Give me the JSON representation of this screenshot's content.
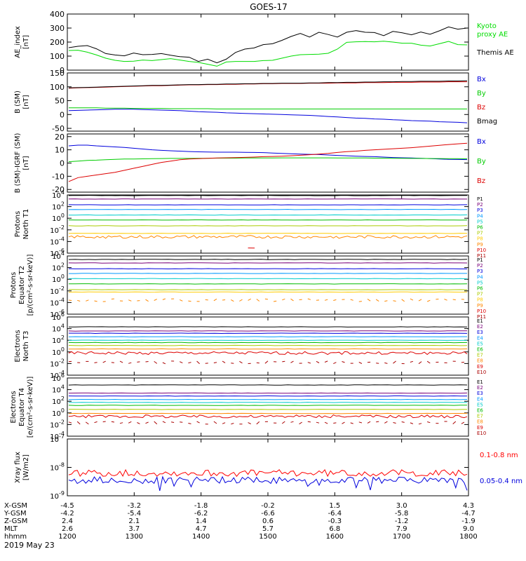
{
  "title": "GOES-17",
  "date_label": "2019 May 23",
  "colors": {
    "P1": "#000000",
    "P2": "#7a007a",
    "P3": "#0000dd",
    "P4": "#0099ff",
    "P5": "#00cccc",
    "P6": "#00bb00",
    "P7": "#aacc00",
    "P8": "#ffcc00",
    "P9": "#ff8800",
    "P10": "#dd0000",
    "P11": "#aa0000",
    "E1": "#000000",
    "E2": "#7a007a",
    "E3": "#0000dd",
    "E4": "#0099ff",
    "E5": "#00cccc",
    "E6": "#00bb00",
    "E7": "#aacc00",
    "E8": "#ff8800",
    "E9": "#dd0000",
    "E10": "#aa0000",
    "Kyoto proxy AE": "#00dd00",
    "Themis AE": "#000000",
    "Bx": "#0000dd",
    "By": "#00cc00",
    "Bz": "#dd0000",
    "Bmag": "#000000",
    "0.1-0.8 nm": "#ff0000",
    "0.05-0.4 nm": "#0000dd"
  },
  "ephemeris": {
    "rows": [
      {
        "label": "X-GSM",
        "values": [
          "-4.5",
          "-3.2",
          "-1.8",
          "-0.2",
          "1.5",
          "3.0",
          "4.3"
        ]
      },
      {
        "label": "Y-GSM",
        "values": [
          "-4.2",
          "-5.4",
          "-6.2",
          "-6.6",
          "-6.4",
          "-5.8",
          "-4.7"
        ]
      },
      {
        "label": "Z-GSM",
        "values": [
          "2.4",
          "2.1",
          "1.4",
          "0.6",
          "-0.3",
          "-1.2",
          "-1.9"
        ]
      },
      {
        "label": "MLT",
        "values": [
          "2.6",
          "3.7",
          "4.7",
          "5.7",
          "6.8",
          "7.9",
          "9.0"
        ]
      },
      {
        "label": "hhmm",
        "values": [
          "1200",
          "1300",
          "1400",
          "1500",
          "1600",
          "1700",
          "1800"
        ]
      }
    ]
  },
  "chart_data": [
    {
      "type": "line",
      "ylabel": "AE_index\n[nT]",
      "ylim": [
        0,
        400
      ],
      "yticks": [
        "0",
        "100",
        "200",
        "300",
        "400"
      ],
      "series": [
        {
          "name": "Kyoto\nproxy AE",
          "values": [
            140,
            142,
            128,
            108,
            85,
            70,
            62,
            64,
            72,
            68,
            75,
            82,
            72,
            62,
            55,
            42,
            28,
            58,
            62,
            62,
            62,
            68,
            70,
            85,
            100,
            110,
            112,
            114,
            120,
            150,
            198,
            202,
            204,
            202,
            206,
            200,
            192,
            192,
            178,
            172,
            188,
            205,
            182,
            180
          ]
        },
        {
          "name": "Themis AE",
          "values": [
            160,
            170,
            175,
            152,
            118,
            108,
            102,
            122,
            110,
            112,
            118,
            106,
            96,
            92,
            62,
            78,
            52,
            78,
            126,
            150,
            158,
            182,
            188,
            212,
            240,
            262,
            236,
            270,
            254,
            236,
            270,
            282,
            270,
            268,
            246,
            276,
            266,
            252,
            272,
            256,
            280,
            308,
            292,
            300
          ]
        }
      ]
    },
    {
      "type": "line",
      "ylabel": "B (SM)\n[nT]",
      "ylim": [
        -60,
        150
      ],
      "yticks": [
        "-50",
        "0",
        "50",
        "100",
        "150"
      ],
      "series": [
        {
          "name": "Bx",
          "values": [
            14,
            15,
            16,
            17,
            18,
            19,
            19,
            19,
            18,
            17,
            16,
            15,
            14,
            12,
            10,
            9,
            8,
            6,
            5,
            4,
            3,
            2,
            1,
            0,
            -1,
            -2,
            -3,
            -5,
            -7,
            -9,
            -11,
            -13,
            -14,
            -16,
            -17,
            -19,
            -20,
            -22,
            -23,
            -24,
            -26,
            -27,
            -28,
            -30
          ]
        },
        {
          "name": "By",
          "values": [
            24,
            24,
            24,
            24,
            23,
            23,
            23,
            22,
            22,
            22,
            22,
            21,
            21,
            21,
            21,
            21,
            20,
            20,
            20,
            20,
            20,
            20,
            20,
            20,
            20,
            20,
            20,
            20,
            20,
            20,
            20,
            20,
            20,
            20,
            20,
            20,
            20,
            20,
            20,
            20,
            20,
            20,
            20,
            20
          ]
        },
        {
          "name": "Bz",
          "values": [
            95,
            96,
            97,
            98,
            99,
            100,
            101,
            102,
            103,
            104,
            104,
            105,
            106,
            107,
            107,
            108,
            108,
            109,
            109,
            110,
            110,
            111,
            111,
            112,
            112,
            112,
            113,
            113,
            113,
            114,
            114,
            114,
            115,
            115,
            115,
            116,
            116,
            116,
            117,
            117,
            117,
            118,
            118,
            118
          ]
        },
        {
          "name": "Bmag",
          "values": [
            96,
            97,
            98,
            99,
            100,
            101,
            102,
            103,
            104,
            105,
            105,
            106,
            107,
            108,
            108,
            109,
            109,
            110,
            110,
            111,
            111,
            112,
            112,
            113,
            113,
            113,
            114,
            114,
            115,
            115,
            116,
            116,
            117,
            117,
            118,
            118,
            119,
            119,
            120,
            120,
            120,
            121,
            121,
            122
          ]
        }
      ]
    },
    {
      "type": "line",
      "ylabel": "B (SM)-IGRF (SM)\n[nT]",
      "ylim": [
        -22,
        22
      ],
      "yticks": [
        "-20",
        "-10",
        "0",
        "10",
        "20"
      ],
      "series": [
        {
          "name": "Bx",
          "values": [
            13,
            13.5,
            13.5,
            13,
            12.6,
            12.2,
            11.8,
            11.2,
            10.6,
            10,
            9.6,
            9.3,
            9,
            8.7,
            8.5,
            8.3,
            8.2,
            8.2,
            8.2,
            8.1,
            8,
            7.9,
            7.6,
            7.3,
            7,
            6.8,
            6.6,
            6.4,
            6.1,
            5.8,
            5.5,
            5.2,
            5,
            4.8,
            4.5,
            4.2,
            4,
            3.8,
            3.6,
            3.4,
            3.1,
            2.8,
            2.7,
            2.6
          ]
        },
        {
          "name": "By",
          "values": [
            1,
            1.5,
            2,
            2.2,
            2.5,
            2.8,
            3,
            3.1,
            3.2,
            3.3,
            3.4,
            3.5,
            3.5,
            3.5,
            3.6,
            3.6,
            3.7,
            3.7,
            3.7,
            3.8,
            3.8,
            3.8,
            3.8,
            3.9,
            3.9,
            3.9,
            3.9,
            3.9,
            3.9,
            3.8,
            3.8,
            3.8,
            3.8,
            3.7,
            3.7,
            3.6,
            3.6,
            3.5,
            3.5,
            3.4,
            3.4,
            3.3,
            3.3,
            3.2
          ]
        },
        {
          "name": "Bz",
          "values": [
            -14,
            -11,
            -10,
            -9,
            -8,
            -7,
            -5.5,
            -4,
            -2.5,
            -1,
            0.5,
            1.5,
            2.5,
            3,
            3.3,
            3.6,
            3.8,
            4,
            4.1,
            4.3,
            4.5,
            4.8,
            5,
            5.2,
            5.5,
            5.9,
            6.3,
            6.8,
            7.3,
            8,
            8.6,
            9,
            9.6,
            10,
            10.4,
            10.8,
            11.2,
            11.6,
            12.2,
            12.8,
            13.4,
            14,
            14.5,
            15
          ]
        }
      ]
    },
    {
      "type": "line",
      "ylabel": "Protons\nNorth T1",
      "yscale": "log",
      "ylim": [
        -6,
        4
      ],
      "yticks_exp": [
        -6,
        -4,
        -2,
        0,
        2,
        4
      ],
      "series": [
        {
          "name": "P1",
          "level": 3.9
        },
        {
          "name": "P2",
          "level": 3.3
        },
        {
          "name": "P3",
          "level": 2.3
        },
        {
          "name": "P4",
          "level": 1.5
        },
        {
          "name": "P5",
          "level": 0.55
        },
        {
          "name": "P6",
          "level": -0.3
        },
        {
          "name": "P7",
          "level": -1.3
        },
        {
          "name": "P8",
          "level": -2.6
        },
        {
          "name": "P9",
          "level": -3.2,
          "noisy": true
        },
        {
          "name": "P10",
          "level": -5.1,
          "segment": true
        },
        {
          "name": "P11",
          "level": -6.5,
          "hidden": true
        }
      ]
    },
    {
      "type": "line",
      "ylabel": "Protons\nEquator T2\n[p/(cm²-s-sr-keV)]",
      "yscale": "log",
      "ylim": [
        -6,
        4
      ],
      "yticks_exp": [
        -6,
        -4,
        -2,
        0,
        2,
        4
      ],
      "series": [
        {
          "name": "P1",
          "level": 3.4
        },
        {
          "name": "P2",
          "level": 2.8
        },
        {
          "name": "P3",
          "level": 1.8
        },
        {
          "name": "P4",
          "level": 1.0
        },
        {
          "name": "P5",
          "level": 0.1
        },
        {
          "name": "P6",
          "level": -0.8
        },
        {
          "name": "P7",
          "level": -1.8
        },
        {
          "name": "P8",
          "level": -2.2
        },
        {
          "name": "P9",
          "level": -3.6,
          "noisy": true,
          "dashed": true
        },
        {
          "name": "P10",
          "level": -6.5,
          "hidden": true
        },
        {
          "name": "P11",
          "level": -6.5,
          "hidden": true
        }
      ]
    },
    {
      "type": "line",
      "ylabel": "Electrons\nNorth T3",
      "yscale": "log",
      "ylim": [
        -4,
        6
      ],
      "yticks_exp": [
        -4,
        -2,
        0,
        2,
        4,
        6
      ],
      "series": [
        {
          "name": "E1",
          "level": 4.3
        },
        {
          "name": "E2",
          "level": 3.6
        },
        {
          "name": "E3",
          "level": 3.2
        },
        {
          "name": "E4",
          "level": 2.6
        },
        {
          "name": "E5",
          "level": 2.0
        },
        {
          "name": "E6",
          "level": 1.6
        },
        {
          "name": "E7",
          "level": 1.1
        },
        {
          "name": "E8",
          "level": 0.5
        },
        {
          "name": "E9",
          "level": -0.2,
          "noisy": true
        },
        {
          "name": "E10",
          "level": -1.8,
          "noisy": true,
          "dashed": true
        }
      ]
    },
    {
      "type": "line",
      "ylabel": "Electrons\nEquator T4\n[e/(cm²-s-sr-keV)]",
      "yscale": "log",
      "ylim": [
        -4,
        6
      ],
      "yticks_exp": [
        -4,
        -2,
        0,
        2,
        4,
        6
      ],
      "series": [
        {
          "name": "E1",
          "level": 4.8
        },
        {
          "name": "E2",
          "level": 3.4
        },
        {
          "name": "E3",
          "level": 2.9
        },
        {
          "name": "E4",
          "level": 2.3
        },
        {
          "name": "E5",
          "level": 1.8
        },
        {
          "name": "E6",
          "level": 1.3
        },
        {
          "name": "E7",
          "level": 0.6
        },
        {
          "name": "E8",
          "level": -0.1
        },
        {
          "name": "E9",
          "level": -0.6,
          "noisy": true
        },
        {
          "name": "E10",
          "level": -1.7,
          "noisy": true,
          "dashed": true
        }
      ]
    },
    {
      "type": "line",
      "ylabel": "Xray flux\n[W/m2]",
      "yscale": "log",
      "ylim": [
        -9,
        -7
      ],
      "yticks_exp": [
        -9,
        -8,
        -7
      ],
      "series": [
        {
          "name": "0.1-0.8 nm",
          "level": -8.2,
          "noisy": true
        },
        {
          "name": "0.05-0.4 nm",
          "level": -8.45,
          "noisy": true
        }
      ]
    }
  ]
}
